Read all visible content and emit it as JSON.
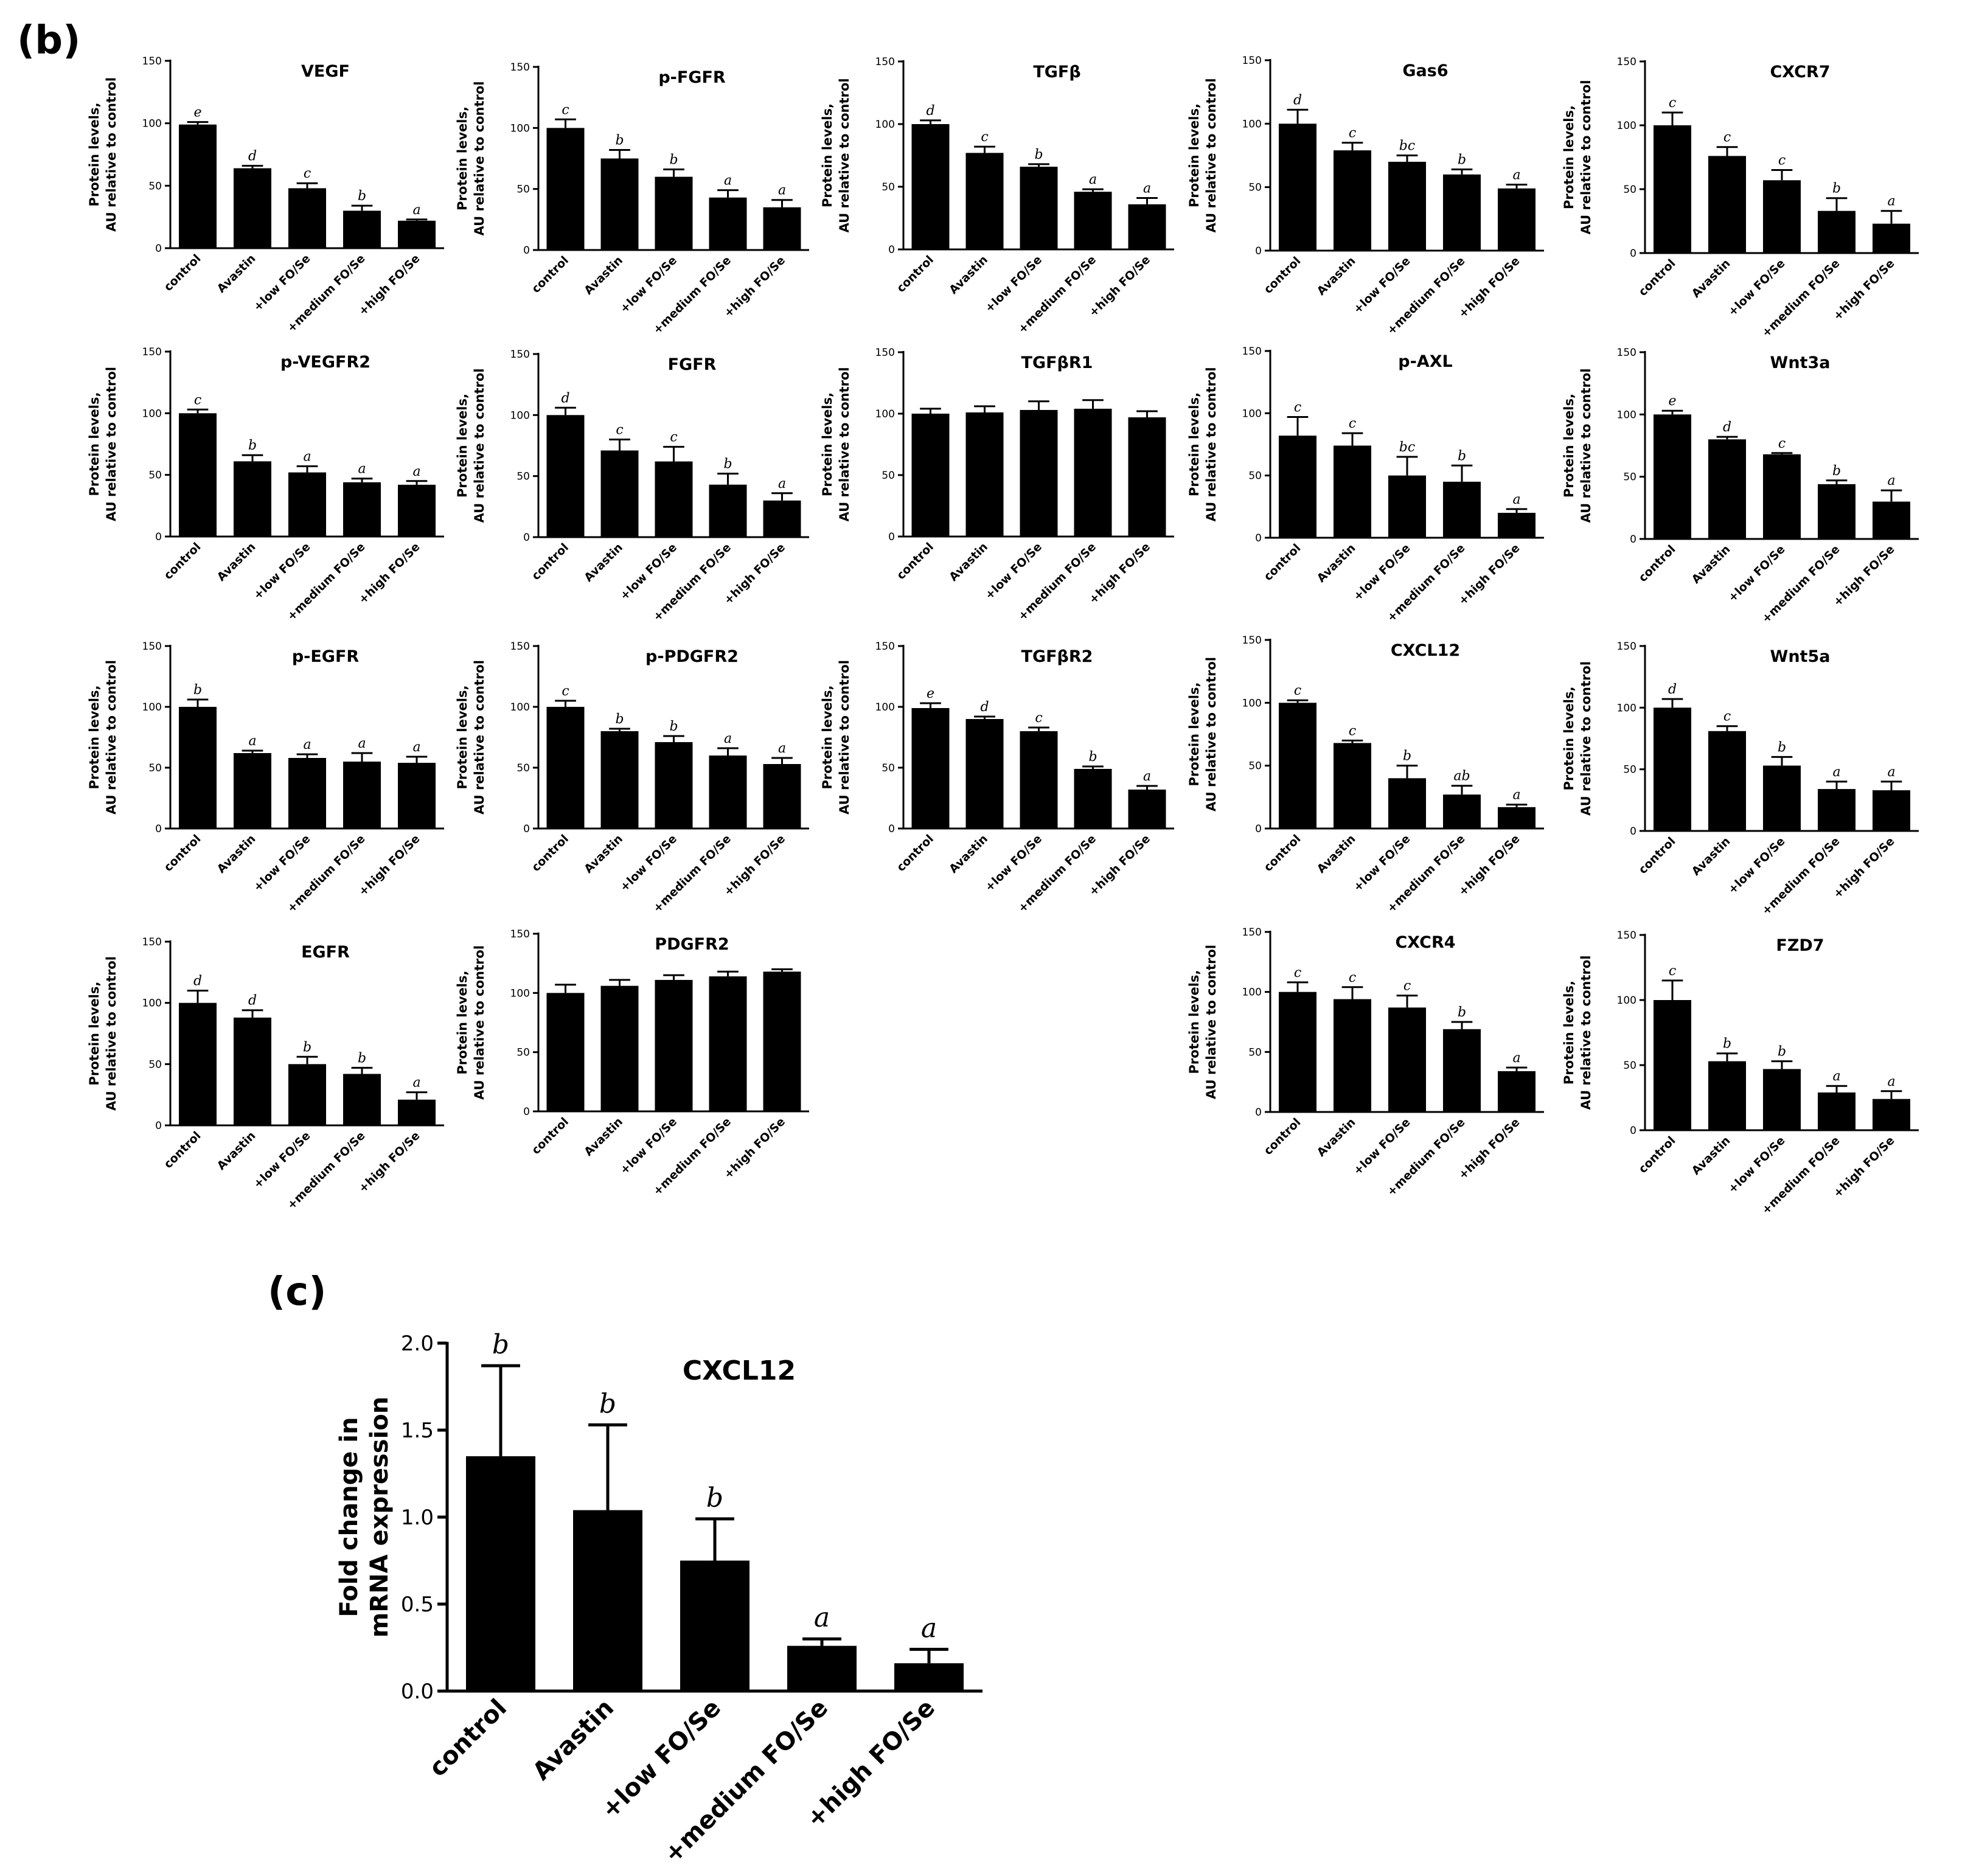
{
  "panels": {
    "b_label": "(b)",
    "c_label": "(c)"
  },
  "common": {
    "categories": [
      "control",
      "Avastin",
      "+low FO/Se",
      "+medium FO/Se",
      "+high FO/Se"
    ],
    "ylabel_b_line1": "Protein levels,",
    "ylabel_b_line2": "AU relative to control",
    "ylabel_c_line1": "Fold change in",
    "ylabel_c_line2": "mRNA expression"
  },
  "chart_data": [
    {
      "type": "bar",
      "title": "VEGF",
      "ylim": [
        0,
        150
      ],
      "yticks": [
        0,
        50,
        100,
        150
      ],
      "values": [
        99,
        64,
        48,
        30,
        22
      ],
      "errors": [
        2,
        2,
        4,
        4,
        1
      ],
      "letters": [
        "e",
        "d",
        "c",
        "b",
        "a"
      ]
    },
    {
      "type": "bar",
      "title": "p-FGFR",
      "ylim": [
        0,
        150
      ],
      "yticks": [
        0,
        50,
        100,
        150
      ],
      "values": [
        100,
        75,
        60,
        43,
        35
      ],
      "errors": [
        7,
        7,
        6,
        6,
        6
      ],
      "letters": [
        "c",
        "b",
        "b",
        "a",
        "a"
      ]
    },
    {
      "type": "bar",
      "title": "TGFβ",
      "ylim": [
        0,
        150
      ],
      "yticks": [
        0,
        50,
        100,
        150
      ],
      "values": [
        100,
        77,
        66,
        46,
        36
      ],
      "errors": [
        3,
        5,
        2,
        2,
        5
      ],
      "letters": [
        "d",
        "c",
        "b",
        "a",
        "a"
      ]
    },
    {
      "type": "bar",
      "title": "Gas6",
      "ylim": [
        0,
        150
      ],
      "yticks": [
        0,
        50,
        100,
        150
      ],
      "values": [
        100,
        79,
        70,
        60,
        49
      ],
      "errors": [
        11,
        6,
        5,
        4,
        3
      ],
      "letters": [
        "d",
        "c",
        "bc",
        "b",
        "a"
      ]
    },
    {
      "type": "bar",
      "title": "CXCR7",
      "ylim": [
        0,
        150
      ],
      "yticks": [
        0,
        50,
        100,
        150
      ],
      "values": [
        100,
        76,
        57,
        33,
        23
      ],
      "errors": [
        10,
        7,
        8,
        10,
        10
      ],
      "letters": [
        "c",
        "c",
        "c",
        "b",
        "a"
      ]
    },
    {
      "type": "bar",
      "title": "p-VEGFR2",
      "ylim": [
        0,
        150
      ],
      "yticks": [
        0,
        50,
        100,
        150
      ],
      "values": [
        100,
        61,
        52,
        44,
        42
      ],
      "errors": [
        3,
        5,
        5,
        3,
        3
      ],
      "letters": [
        "c",
        "b",
        "a",
        "a",
        "a"
      ]
    },
    {
      "type": "bar",
      "title": "FGFR",
      "ylim": [
        0,
        150
      ],
      "yticks": [
        0,
        50,
        100,
        150
      ],
      "values": [
        100,
        71,
        62,
        43,
        30
      ],
      "errors": [
        6,
        9,
        12,
        9,
        6
      ],
      "letters": [
        "d",
        "c",
        "c",
        "b",
        "a"
      ]
    },
    {
      "type": "bar",
      "title": "TGFβR1",
      "ylim": [
        0,
        150
      ],
      "yticks": [
        0,
        50,
        100,
        150
      ],
      "values": [
        100,
        101,
        103,
        104,
        97
      ],
      "errors": [
        4,
        5,
        7,
        7,
        5
      ],
      "letters": [
        "",
        "",
        "",
        "",
        ""
      ]
    },
    {
      "type": "bar",
      "title": "p-AXL",
      "ylim": [
        0,
        150
      ],
      "yticks": [
        0,
        50,
        100,
        150
      ],
      "values": [
        82,
        74,
        50,
        45,
        20
      ],
      "errors": [
        15,
        10,
        15,
        13,
        3
      ],
      "letters": [
        "c",
        "c",
        "bc",
        "b",
        "a"
      ]
    },
    {
      "type": "bar",
      "title": "Wnt3a",
      "ylim": [
        0,
        150
      ],
      "yticks": [
        0,
        50,
        100,
        150
      ],
      "values": [
        100,
        80,
        68,
        44,
        30
      ],
      "errors": [
        3,
        2,
        1,
        3,
        9
      ],
      "letters": [
        "e",
        "d",
        "c",
        "b",
        "a"
      ]
    },
    {
      "type": "bar",
      "title": "p-EGFR",
      "ylim": [
        0,
        150
      ],
      "yticks": [
        0,
        50,
        100,
        150
      ],
      "values": [
        100,
        62,
        58,
        55,
        54
      ],
      "errors": [
        6,
        2,
        3,
        7,
        5
      ],
      "letters": [
        "b",
        "a",
        "a",
        "a",
        "a"
      ]
    },
    {
      "type": "bar",
      "title": "p-PDGFR2",
      "ylim": [
        0,
        150
      ],
      "yticks": [
        0,
        50,
        100,
        150
      ],
      "values": [
        100,
        80,
        71,
        60,
        53
      ],
      "errors": [
        5,
        2,
        5,
        6,
        5
      ],
      "letters": [
        "c",
        "b",
        "b",
        "a",
        "a"
      ]
    },
    {
      "type": "bar",
      "title": "TGFβR2",
      "ylim": [
        0,
        150
      ],
      "yticks": [
        0,
        50,
        100,
        150
      ],
      "values": [
        99,
        90,
        80,
        49,
        32
      ],
      "errors": [
        4,
        2,
        3,
        2,
        3
      ],
      "letters": [
        "e",
        "d",
        "c",
        "b",
        "a"
      ]
    },
    {
      "type": "bar",
      "title": "CXCL12",
      "ylim": [
        0,
        150
      ],
      "yticks": [
        0,
        50,
        100,
        150
      ],
      "values": [
        100,
        68,
        40,
        27,
        17
      ],
      "errors": [
        2,
        2,
        10,
        7,
        2
      ],
      "letters": [
        "c",
        "c",
        "b",
        "ab",
        "a"
      ]
    },
    {
      "type": "bar",
      "title": "Wnt5a",
      "ylim": [
        0,
        150
      ],
      "yticks": [
        0,
        50,
        100,
        150
      ],
      "values": [
        100,
        81,
        53,
        34,
        33
      ],
      "errors": [
        7,
        4,
        7,
        6,
        7
      ],
      "letters": [
        "d",
        "c",
        "b",
        "a",
        "a"
      ]
    },
    {
      "type": "bar",
      "title": "EGFR",
      "ylim": [
        0,
        150
      ],
      "yticks": [
        0,
        50,
        100,
        150
      ],
      "values": [
        100,
        88,
        50,
        42,
        21
      ],
      "errors": [
        10,
        6,
        6,
        5,
        6
      ],
      "letters": [
        "d",
        "d",
        "b",
        "b",
        "a"
      ]
    },
    {
      "type": "bar",
      "title": "PDGFR2",
      "ylim": [
        0,
        150
      ],
      "yticks": [
        0,
        50,
        100,
        150
      ],
      "values": [
        100,
        106,
        111,
        114,
        118
      ],
      "errors": [
        7,
        5,
        4,
        4,
        2
      ],
      "letters": [
        "",
        "",
        "",
        "",
        ""
      ]
    },
    {
      "type": "bar",
      "title": "CXCR4",
      "ylim": [
        0,
        150
      ],
      "yticks": [
        0,
        50,
        100,
        150
      ],
      "values": [
        100,
        94,
        87,
        69,
        34
      ],
      "errors": [
        8,
        10,
        10,
        6,
        3
      ],
      "letters": [
        "c",
        "c",
        "c",
        "b",
        "a"
      ]
    },
    {
      "type": "bar",
      "title": "FZD7",
      "ylim": [
        0,
        150
      ],
      "yticks": [
        0,
        50,
        100,
        150
      ],
      "values": [
        100,
        53,
        47,
        29,
        24
      ],
      "errors": [
        15,
        6,
        6,
        5,
        6
      ],
      "letters": [
        "c",
        "b",
        "b",
        "a",
        "a"
      ]
    },
    {
      "type": "bar",
      "title": "CXCL12",
      "ylim": [
        0,
        2.0
      ],
      "yticks": [
        "0.0",
        "0.5",
        "1.0",
        "1.5",
        "2.0"
      ],
      "values": [
        1.35,
        1.04,
        0.75,
        0.26,
        0.16
      ],
      "errors": [
        0.52,
        0.49,
        0.24,
        0.04,
        0.08
      ],
      "letters": [
        "b",
        "b",
        "b",
        "a",
        "a"
      ]
    }
  ]
}
